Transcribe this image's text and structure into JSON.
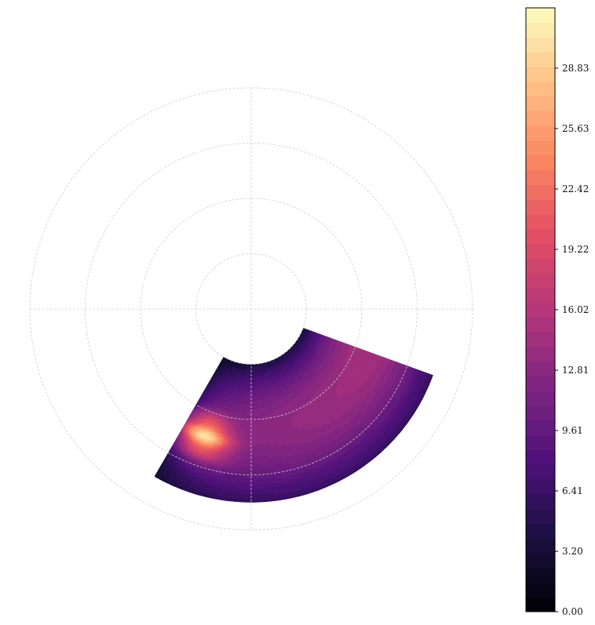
{
  "chart_data": {
    "type": "heatmap",
    "subtype": "polar-filled-contour",
    "title": "",
    "polar_axes": {
      "grid": true,
      "grid_style": "dashed light gray",
      "r_ticks": [
        1,
        2,
        3,
        4
      ],
      "r_max": 4,
      "tick_labels_shown": false,
      "data_sector": {
        "theta_deg": [
          -120,
          -20
        ],
        "r_min": 1,
        "r_max": 3.5
      }
    },
    "field": {
      "description": "intensity values over the sector",
      "background_level": [
        9,
        15
      ],
      "peak": {
        "theta_deg": -110,
        "r": 2.45,
        "value": 30.5
      },
      "min_near_inner_corner": 3
    },
    "colorbar": {
      "colormap": "magma",
      "range": [
        0,
        32.03
      ],
      "levels": 41,
      "tick_values": [
        0.0,
        3.2,
        6.41,
        9.61,
        12.81,
        16.02,
        19.22,
        22.42,
        25.63,
        28.83
      ],
      "tick_labels": [
        "0.00",
        "3.20",
        "6.41",
        "9.61",
        "12.81",
        "16.02",
        "19.22",
        "22.42",
        "25.63",
        "28.83"
      ]
    }
  }
}
